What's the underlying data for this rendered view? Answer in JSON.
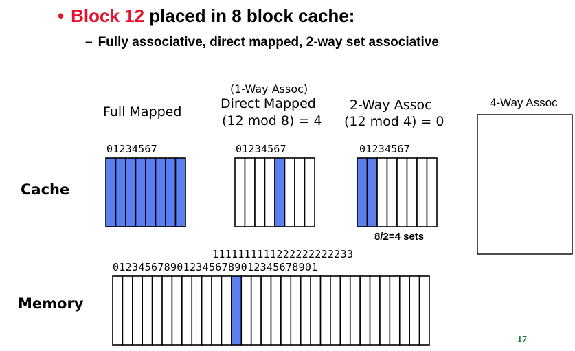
{
  "slide": {
    "bullet": "•",
    "title_highlight": "Block 12",
    "title_rest": " placed in 8 block cache:",
    "subbullet_dash": "–",
    "subtitle": "Fully associative, direct mapped, 2-way set associative",
    "page_number": "17"
  },
  "labels": {
    "full": "Full Mapped",
    "direct_note": "(1-Way Assoc)",
    "direct": "Direct Mapped",
    "direct_formula": "(12 mod 8) = 4",
    "twoway": "2-Way Assoc",
    "twoway_formula": "(12 mod 4) = 0",
    "fourway": "4-Way Assoc",
    "sets": "8/2=4 sets",
    "cache_row": "Cache",
    "memory_row": "Memory"
  },
  "cache_index_digits": "01234567",
  "memory_tens_digits": "1111111111222222222233",
  "memory_ones_digits": "01234567890123456789012345678901",
  "colors": {
    "title_red": "#e8112d",
    "fill_blue": "#5b7ff0",
    "page_green": "#1e7a2c"
  },
  "cache_block_count": 8,
  "memory_block_count": 32,
  "highlight": {
    "full_mapped": [
      0,
      1,
      2,
      3,
      4,
      5,
      6,
      7
    ],
    "direct_mapped": [
      4
    ],
    "two_way": [
      0,
      1
    ],
    "memory": [
      12
    ]
  }
}
